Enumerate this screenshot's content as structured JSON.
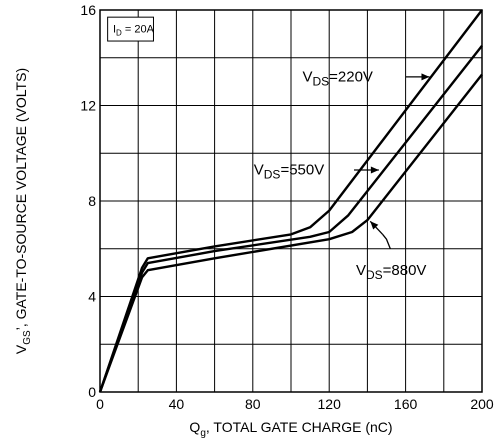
{
  "chart_data": {
    "type": "line",
    "xlabel": {
      "main": "Q",
      "sub": "g",
      "rest": ", TOTAL GATE CHARGE (nC)"
    },
    "ylabel": {
      "main": "V",
      "sub": "GS",
      "rest": "’, GATE-TO-SOURCE VOLTAGE (VOLTS)"
    },
    "xlim": [
      0,
      200
    ],
    "ylim": [
      0,
      16
    ],
    "xticks": [
      0,
      40,
      80,
      120,
      160,
      200
    ],
    "yticks": [
      0,
      4,
      8,
      12,
      16
    ],
    "x_grid_step": 20,
    "y_grid_step": 2,
    "grid": true,
    "condition_box": {
      "main": "I",
      "sub": "D",
      "rest": " = 20A"
    },
    "series": [
      {
        "name": "VDS=220V",
        "label": {
          "main": "V",
          "sub": "DS",
          "rest": "=220V"
        },
        "points": [
          [
            0,
            0
          ],
          [
            22,
            5.2
          ],
          [
            25,
            5.6
          ],
          [
            60,
            6.1
          ],
          [
            100,
            6.6
          ],
          [
            110,
            6.9
          ],
          [
            120,
            7.6
          ],
          [
            200,
            16
          ]
        ]
      },
      {
        "name": "VDS=550V",
        "label": {
          "main": "V",
          "sub": "DS",
          "rest": "=550V"
        },
        "points": [
          [
            0,
            0
          ],
          [
            22,
            5.0
          ],
          [
            25,
            5.4
          ],
          [
            60,
            5.9
          ],
          [
            110,
            6.5
          ],
          [
            120,
            6.7
          ],
          [
            130,
            7.4
          ],
          [
            200,
            14.5
          ]
        ]
      },
      {
        "name": "VDS=880V",
        "label": {
          "main": "V",
          "sub": "DS",
          "rest": "=880V"
        },
        "points": [
          [
            0,
            0
          ],
          [
            22,
            4.8
          ],
          [
            25,
            5.1
          ],
          [
            60,
            5.6
          ],
          [
            120,
            6.4
          ],
          [
            132,
            6.7
          ],
          [
            140,
            7.2
          ],
          [
            200,
            13.3
          ]
        ]
      }
    ]
  }
}
